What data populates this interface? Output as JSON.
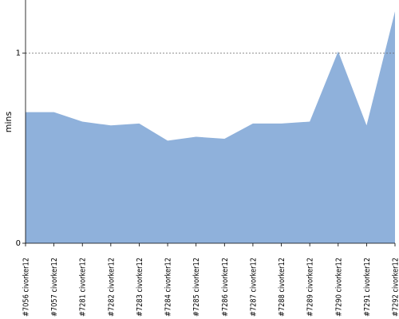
{
  "chart_data": {
    "type": "area",
    "categories": [
      "#7056 civorker12",
      "#7057 civorker12",
      "#7281 civorker12",
      "#7282 civorker12",
      "#7283 civorker12",
      "#7284 civorker12",
      "#7285 civorker12",
      "#7286 civorker12",
      "#7287 civorker12",
      "#7288 civorker12",
      "#7289 civorker12",
      "#7290 civorker12",
      "#7291 civorker12",
      "#7292 civorker12"
    ],
    "values": [
      0.69,
      0.69,
      0.64,
      0.62,
      0.63,
      0.54,
      0.56,
      0.55,
      0.63,
      0.63,
      0.64,
      1.01,
      0.62,
      1.22
    ],
    "xlabel": "",
    "ylabel": "mins",
    "ylim": [
      0,
      1.28
    ],
    "yticks": [
      0,
      1
    ],
    "reference_lines": [
      1
    ],
    "grid": false,
    "colors": {
      "fill": "#8fb1db",
      "axis": "#000000",
      "reference": "#666666"
    }
  }
}
